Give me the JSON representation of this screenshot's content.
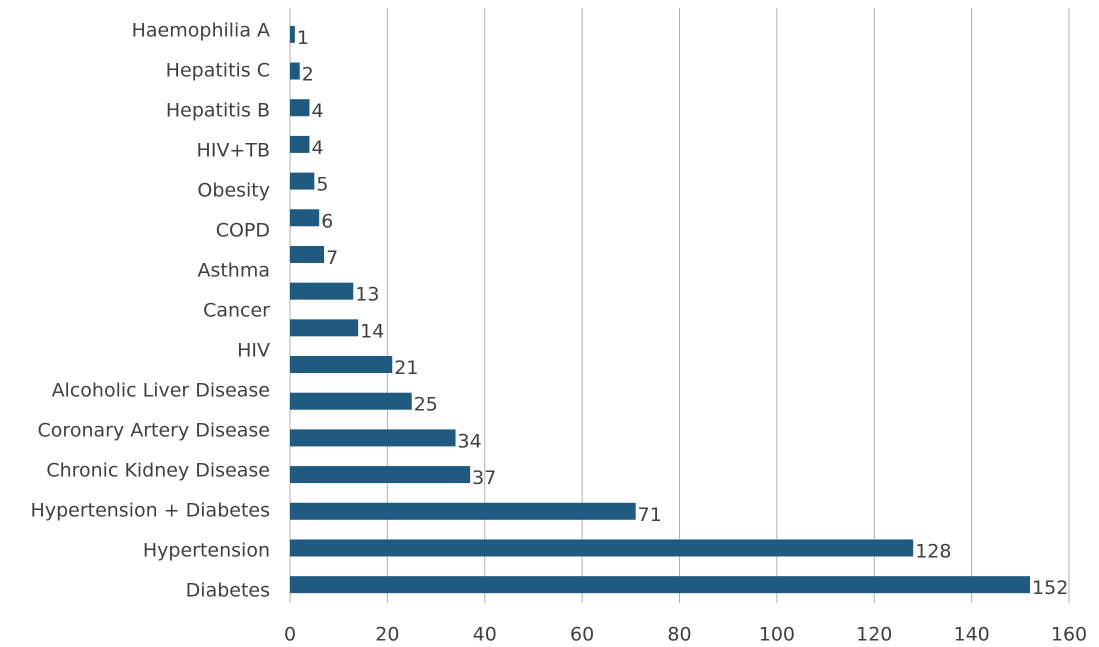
{
  "chart_data": {
    "type": "bar",
    "orientation": "horizontal",
    "categories": [
      "Haemophilia A",
      "Hepatitis C",
      "Hepatitis B",
      "HIV+TB",
      "Obesity",
      "COPD",
      "Asthma",
      "Cancer",
      "HIV",
      null,
      "Alcoholic Liver Disease",
      "Coronary Artery Disease",
      "Chronic Kidney Disease",
      "Hypertension + Diabetes",
      "Hypertension",
      "Diabetes"
    ],
    "values": [
      1,
      2,
      4,
      4,
      5,
      6,
      7,
      13,
      14,
      21,
      25,
      34,
      37,
      71,
      128,
      152
    ],
    "color": "#1f5a80",
    "xlim": [
      0,
      160
    ],
    "xticks": [
      0,
      20,
      40,
      60,
      80,
      100,
      120,
      140,
      160
    ],
    "grid": true
  }
}
